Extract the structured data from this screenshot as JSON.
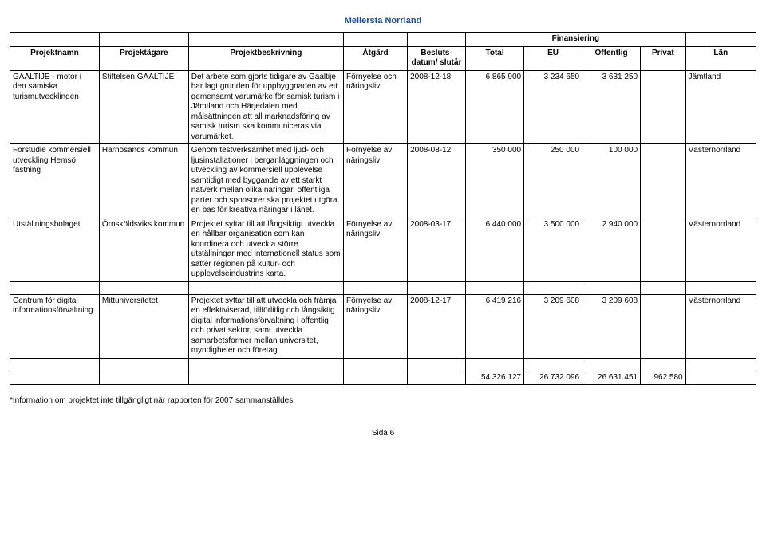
{
  "page_title": "Mellersta Norrland",
  "footnote": "*Information om projektet inte tillgängligt när rapporten för 2007 sammanställdes",
  "page_number": "Sida 6",
  "headers": {
    "finansiering": "Finansiering",
    "projektnamn": "Projektnamn",
    "projektagare": "Projektägare",
    "projektbeskrivning": "Projektbeskrivning",
    "atgard": "Åtgärd",
    "beslutsdatum": "Besluts-datum/ slutår",
    "total": "Total",
    "eu": "EU",
    "offentlig": "Offentlig",
    "privat": "Privat",
    "lan": "Län"
  },
  "rows": [
    {
      "projektnamn": "GAALTIJE - motor i den samiska turismutvecklingen",
      "projektagare": "Stiftelsen GAALTIJE",
      "projektbeskrivning": "Det arbete som gjorts tidigare av Gaaltije har lagt grunden för uppbyggnaden av ett gemensamt varumärke för samisk turism i Jämtland och Härjedalen med målsättningen att all marknadsföring av samisk turism ska kommuniceras via varumärket.",
      "atgard": "Förnyelse och näringsliv",
      "beslutsdatum": "2008-12-18",
      "total": "6 865 900",
      "eu": "3 234 650",
      "offentlig": "3 631 250",
      "privat": "",
      "lan": "Jämtland"
    },
    {
      "projektnamn": "Förstudie kommersiell utveckling Hemsö fästning",
      "projektagare": "Härnösands kommun",
      "projektbeskrivning": "Genom testverksamhet med ljud- och ljusinstallationer i berganläggningen och utveckling av kommersiell upplevelse samtidigt med byggande av ett starkt nätverk mellan olika näringar, offentliga parter och sponsorer ska projektet utgöra en bas för kreativa näringar i länet.",
      "atgard": "Förnyelse av näringsliv",
      "beslutsdatum": "2008-08-12",
      "total": "350 000",
      "eu": "250 000",
      "offentlig": "100 000",
      "privat": "",
      "lan": "Västernorrland"
    },
    {
      "projektnamn": "Utställningsbolaget",
      "projektagare": "Örnsköldsviks kommun",
      "projektbeskrivning": "Projektet syftar till att långsiktigt utveckla en hållbar organisation som kan koordinera och utveckla större utställningar med internationell status som sätter regionen på kultur- och upplevelseindustrins karta.",
      "atgard": "Förnyelse av näringsliv",
      "beslutsdatum": "2008-03-17",
      "total": "6 440 000",
      "eu": "3 500 000",
      "offentlig": "2 940 000",
      "privat": "",
      "lan": "Västernorrland"
    },
    {
      "projektnamn": "Centrum för digital informationsförvaltning",
      "projektagare": "Mittuniversitetet",
      "projektbeskrivning": "Projektet syftar till att utveckla och främja en effektiviserad, tillförlitlig och långsiktig digital informationsförvaltning i offentlig och privat sektor, samt utveckla samarbetsformer mellan universitet, myndigheter och företag.",
      "atgard": "Förnyelse av näringsliv",
      "beslutsdatum": "2008-12-17",
      "total": "6 419 216",
      "eu": "3 209 608",
      "offentlig": "3 209 608",
      "privat": "",
      "lan": "Västernorrland"
    }
  ],
  "totals": {
    "total": "54 326 127",
    "eu": "26 732 096",
    "offentlig": "26 631 451",
    "privat": "962 580"
  }
}
